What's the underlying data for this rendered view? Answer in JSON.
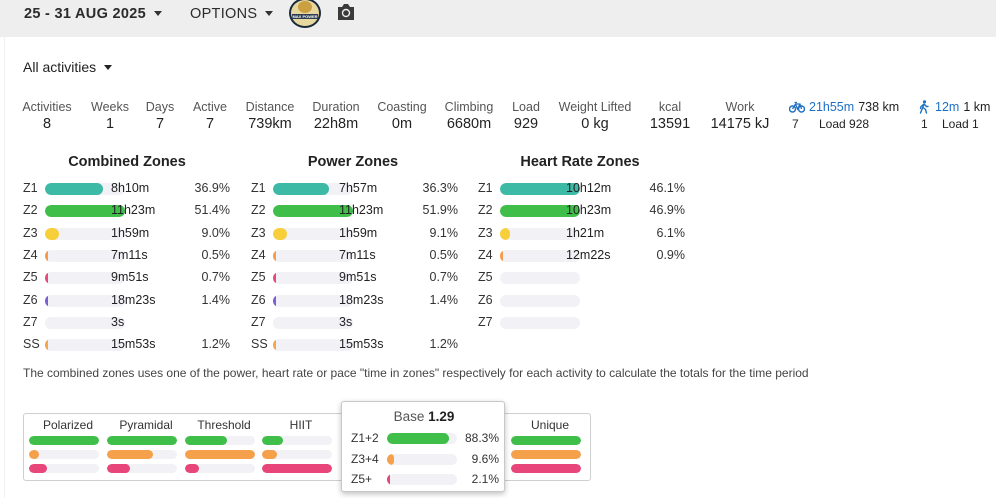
{
  "topbar": {
    "date_range": "25 - 31 AUG 2025",
    "options_label": "OPTIONS",
    "logo_text": "MAX POWER",
    "camera_icon": "camera-icon"
  },
  "filter": {
    "activity_filter": "All activities"
  },
  "stats": [
    {
      "label": "Activities",
      "value": "8"
    },
    {
      "label": "Weeks",
      "value": "1"
    },
    {
      "label": "Days",
      "value": "7"
    },
    {
      "label": "Active",
      "value": "7"
    },
    {
      "label": "Distance",
      "value": "739km"
    },
    {
      "label": "Duration",
      "value": "22h8m"
    },
    {
      "label": "Coasting",
      "value": "0m"
    },
    {
      "label": "Climbing",
      "value": "6680m"
    },
    {
      "label": "Load",
      "value": "929"
    },
    {
      "label": "Weight Lifted",
      "value": "0 kg"
    },
    {
      "label": "kcal",
      "value": "13591"
    },
    {
      "label": "Work",
      "value": "14175 kJ"
    }
  ],
  "sports": [
    {
      "icon": "bike-icon",
      "time": "21h55m",
      "distance": "738 km",
      "count": "7",
      "load": "Load 928"
    },
    {
      "icon": "walk-icon",
      "time": "12m",
      "distance": "1 km",
      "count": "1",
      "load": "Load 1"
    }
  ],
  "zone_tables": [
    {
      "title": "Combined Zones",
      "rows": [
        {
          "zone": "Z1",
          "time": "8h10m",
          "pct": "36.9%",
          "fill": 0.72,
          "color": "#3dbaa6"
        },
        {
          "zone": "Z2",
          "time": "11h23m",
          "pct": "51.4%",
          "fill": 1.0,
          "color": "#3fbf4a"
        },
        {
          "zone": "Z3",
          "time": "1h59m",
          "pct": "9.0%",
          "fill": 0.18,
          "color": "#f7cf3a"
        },
        {
          "zone": "Z4",
          "time": "7m11s",
          "pct": "0.5%",
          "fill": 0.02,
          "color": "#f59a4a"
        },
        {
          "zone": "Z5",
          "time": "9m51s",
          "pct": "0.7%",
          "fill": 0.02,
          "color": "#e84a78"
        },
        {
          "zone": "Z6",
          "time": "18m23s",
          "pct": "1.4%",
          "fill": 0.03,
          "color": "#7a5fd6"
        },
        {
          "zone": "Z7",
          "time": "3s",
          "pct": "",
          "fill": 0.0,
          "color": "#444444"
        },
        {
          "zone": "SS",
          "time": "15m53s",
          "pct": "1.2%",
          "fill": 0.03,
          "color": "#f5a54a"
        }
      ]
    },
    {
      "title": "Power Zones",
      "rows": [
        {
          "zone": "Z1",
          "time": "7h57m",
          "pct": "36.3%",
          "fill": 0.7,
          "color": "#3dbaa6"
        },
        {
          "zone": "Z2",
          "time": "11h23m",
          "pct": "51.9%",
          "fill": 1.0,
          "color": "#3fbf4a"
        },
        {
          "zone": "Z3",
          "time": "1h59m",
          "pct": "9.1%",
          "fill": 0.18,
          "color": "#f7cf3a"
        },
        {
          "zone": "Z4",
          "time": "7m11s",
          "pct": "0.5%",
          "fill": 0.02,
          "color": "#f59a4a"
        },
        {
          "zone": "Z5",
          "time": "9m51s",
          "pct": "0.7%",
          "fill": 0.02,
          "color": "#e84a78"
        },
        {
          "zone": "Z6",
          "time": "18m23s",
          "pct": "1.4%",
          "fill": 0.03,
          "color": "#7a5fd6"
        },
        {
          "zone": "Z7",
          "time": "3s",
          "pct": "",
          "fill": 0.0,
          "color": "#444444"
        },
        {
          "zone": "SS",
          "time": "15m53s",
          "pct": "1.2%",
          "fill": 0.03,
          "color": "#f5a54a"
        }
      ]
    },
    {
      "title": "Heart Rate Zones",
      "rows": [
        {
          "zone": "Z1",
          "time": "10h12m",
          "pct": "46.1%",
          "fill": 1.0,
          "color": "#3dbaa6"
        },
        {
          "zone": "Z2",
          "time": "10h23m",
          "pct": "46.9%",
          "fill": 1.0,
          "color": "#3fbf4a"
        },
        {
          "zone": "Z3",
          "time": "1h21m",
          "pct": "6.1%",
          "fill": 0.13,
          "color": "#f7cf3a"
        },
        {
          "zone": "Z4",
          "time": "12m22s",
          "pct": "0.9%",
          "fill": 0.02,
          "color": "#f59a4a"
        },
        {
          "zone": "Z5",
          "time": "",
          "pct": "",
          "fill": 0.0,
          "color": "#e84a78"
        },
        {
          "zone": "Z6",
          "time": "",
          "pct": "",
          "fill": 0.0,
          "color": "#7a5fd6"
        },
        {
          "zone": "Z7",
          "time": "",
          "pct": "",
          "fill": 0.0,
          "color": "#444444"
        }
      ]
    }
  ],
  "note": "The combined zones uses one of the power, heart rate or pace \"time in zones\" respectively for each activity to calculate the totals for the time period",
  "models": {
    "colors": {
      "low": "#3fbf4a",
      "mid": "#f5a04a",
      "high": "#e8457a"
    },
    "columns": [
      {
        "name": "Polarized",
        "fills": [
          1.0,
          0.14,
          0.26
        ]
      },
      {
        "name": "Pyramidal",
        "fills": [
          1.0,
          0.66,
          0.33
        ]
      },
      {
        "name": "Threshold",
        "fills": [
          0.6,
          1.0,
          0.2
        ]
      },
      {
        "name": "HIIT",
        "fills": [
          0.3,
          0.22,
          1.0
        ]
      },
      {
        "name": "",
        "fills": [
          0,
          0,
          0
        ]
      },
      {
        "name": "",
        "fills": [
          0,
          0,
          0
        ]
      },
      {
        "name": "Unique",
        "fills": [
          1.0,
          1.0,
          1.0
        ]
      }
    ]
  },
  "popup": {
    "title_prefix": "Base",
    "score": "1.29",
    "rows": [
      {
        "label": "Z1+2",
        "pct": "88.3%",
        "fill": 0.883,
        "color": "#3fbf4a"
      },
      {
        "label": "Z3+4",
        "pct": "9.6%",
        "fill": 0.096,
        "color": "#f5a04a"
      },
      {
        "label": "Z5+",
        "pct": "2.1%",
        "fill": 0.021,
        "color": "#e8457a"
      }
    ]
  }
}
